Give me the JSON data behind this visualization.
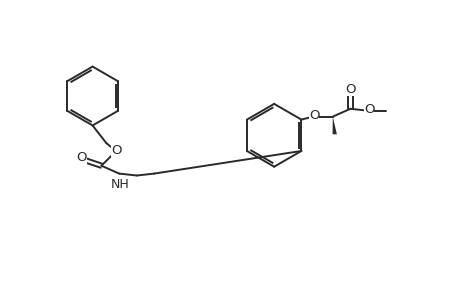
{
  "bg_color": "#ffffff",
  "line_color": "#2a2a2a",
  "line_width": 1.4,
  "font_size": 9.5,
  "figsize": [
    4.6,
    3.0
  ],
  "dpi": 100,
  "xlim": [
    0,
    46
  ],
  "ylim": [
    0,
    30
  ]
}
